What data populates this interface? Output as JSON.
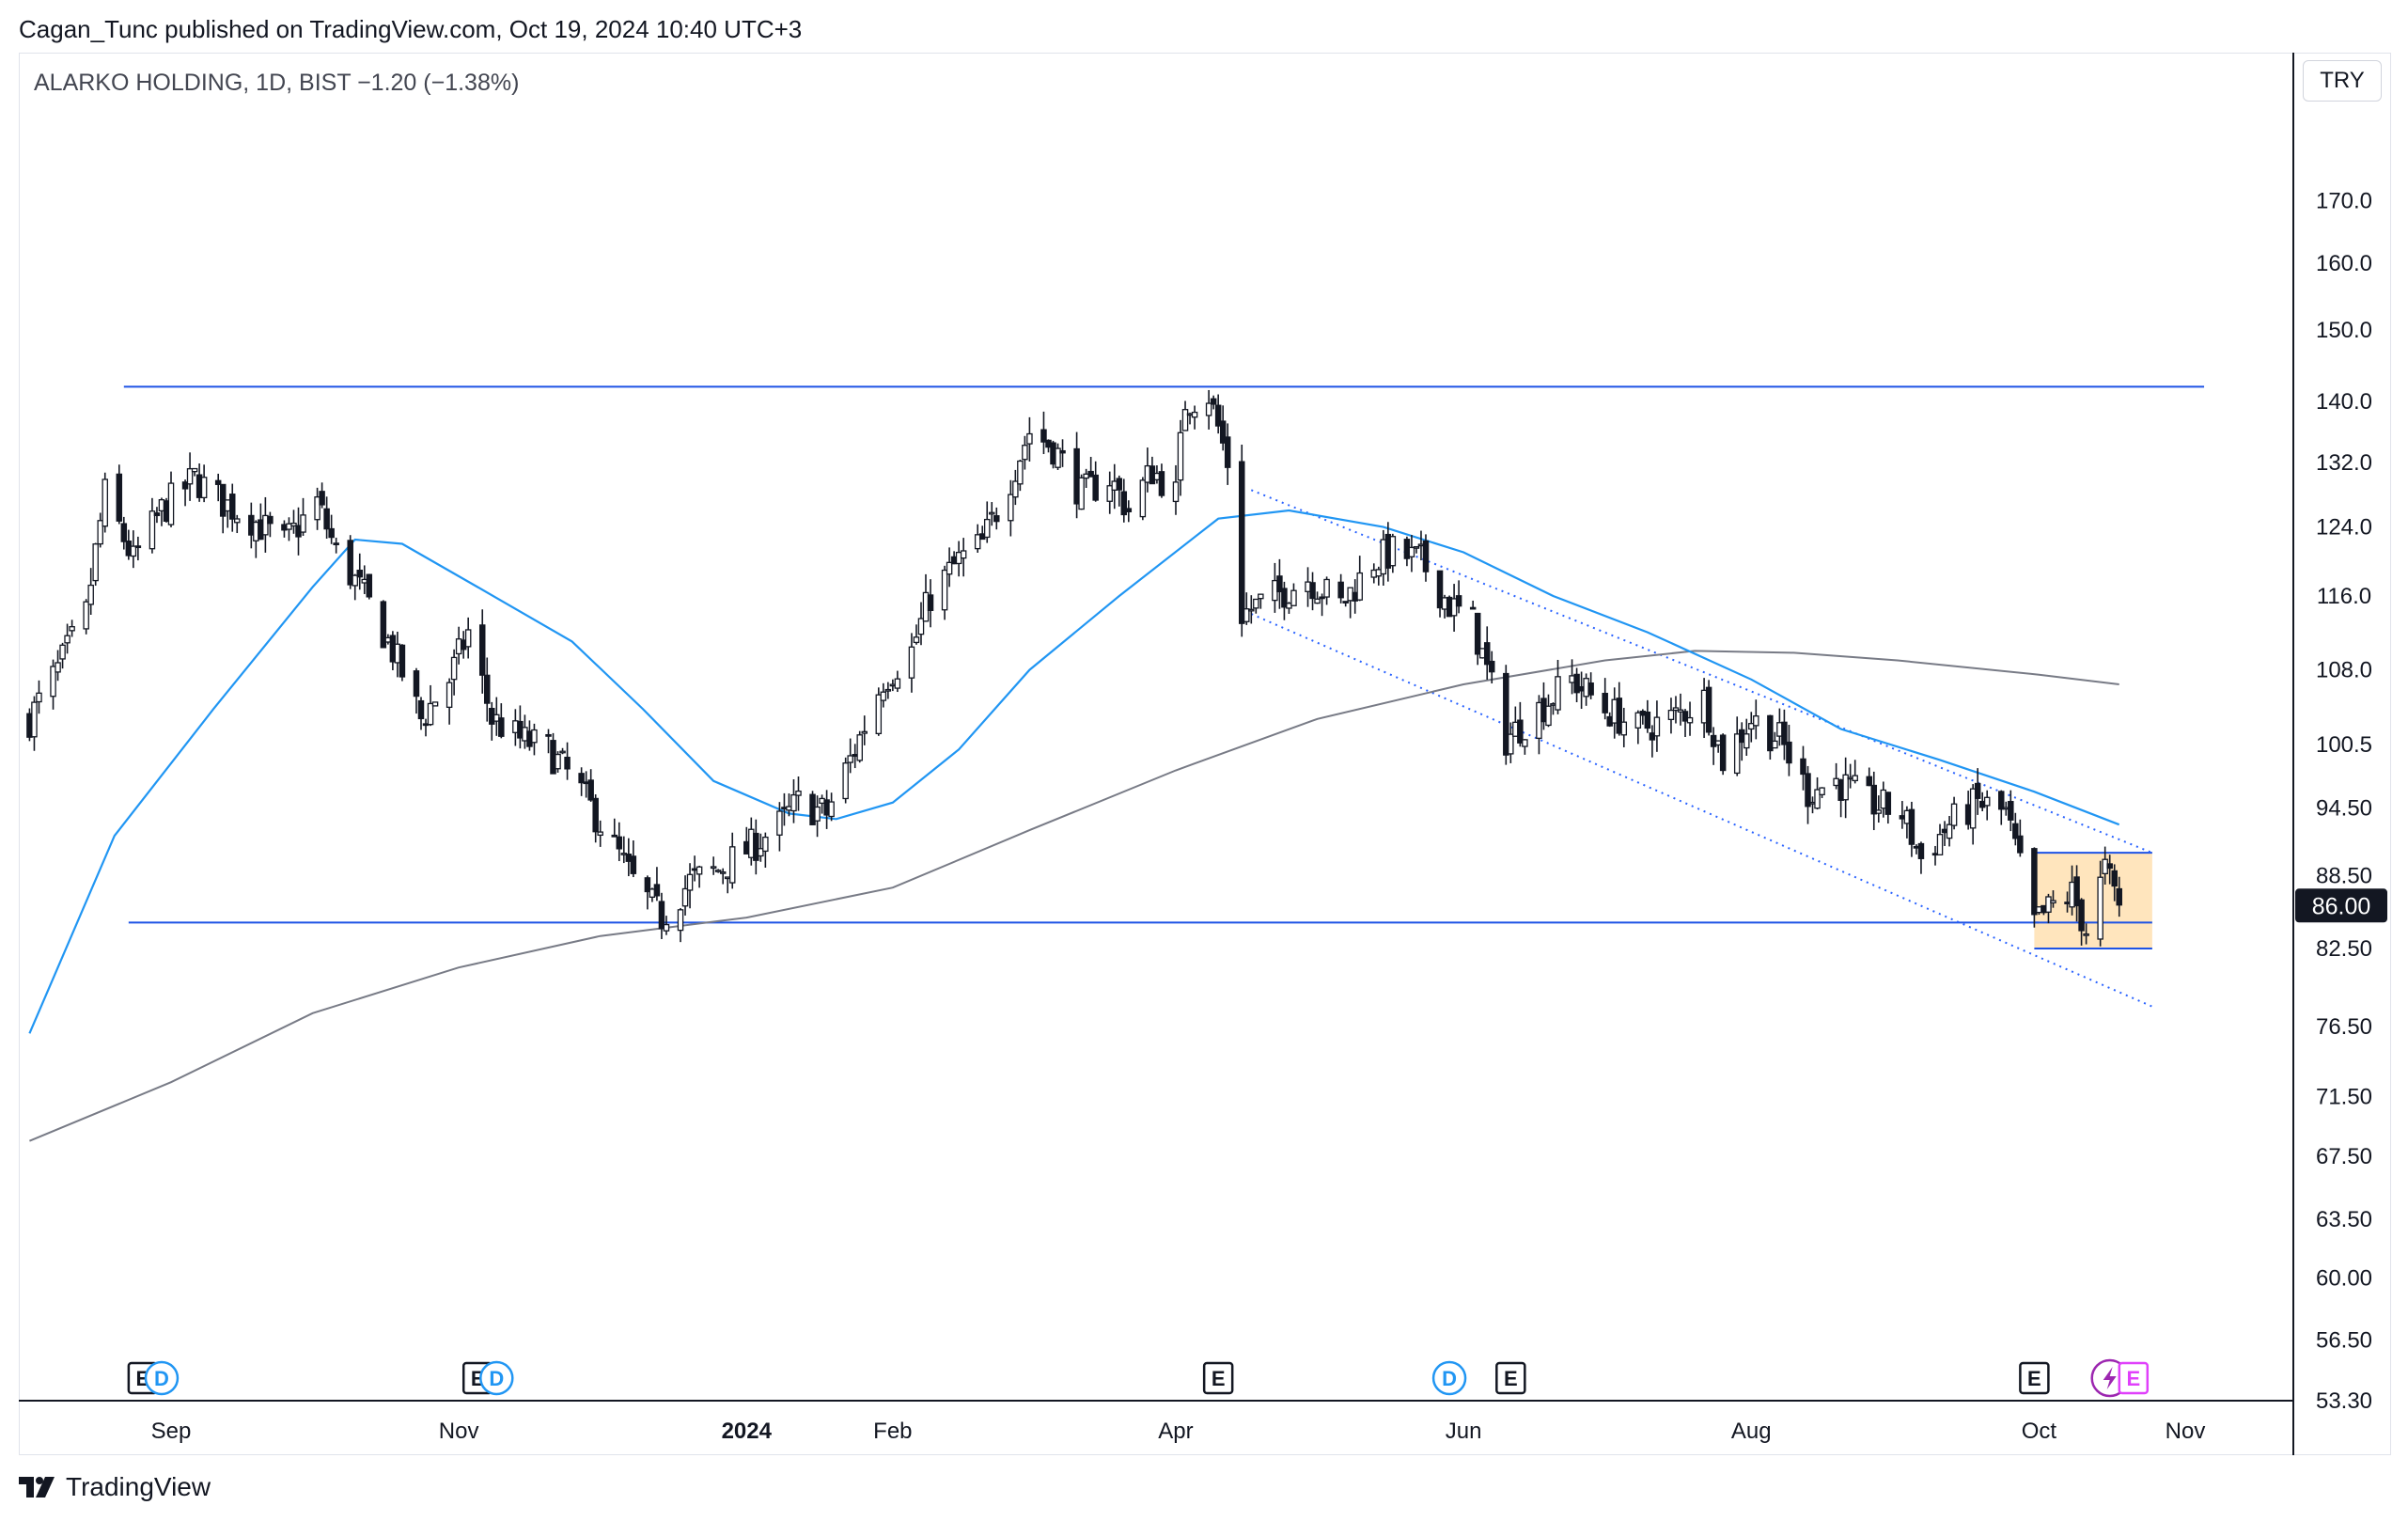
{
  "header": {
    "publisher_line": "Cagan_Tunc published on TradingView.com, Oct 19, 2024 10:40 UTC+3"
  },
  "symbol_line": "ALARKO HOLDING, 1D, BIST  −1.20 (−1.38%)",
  "currency": "TRY",
  "branding": "TradingView",
  "colors": {
    "candle": "#131722",
    "sma_fast": "#2196f3",
    "sma_slow": "#787b86",
    "level_line": "#1e53e5",
    "channel": "#2962ff",
    "range_box_fill": "#ffe0b2",
    "range_box_border": "#1e53e5",
    "price_label_bg": "#131722",
    "bolt": "#9c27b0",
    "earnings_future": "#e040fb"
  },
  "chart_data": {
    "type": "candlestick",
    "scale": "log",
    "y_ticks": [
      "170.0",
      "160.0",
      "150.0",
      "140.0",
      "132.0",
      "124.0",
      "116.0",
      "108.0",
      "100.5",
      "94.50",
      "88.50",
      "82.50",
      "76.50",
      "71.50",
      "67.50",
      "63.50",
      "60.00",
      "56.50",
      "53.30"
    ],
    "y_tick_values": [
      170,
      160,
      150,
      140,
      132,
      124,
      116,
      108,
      100.5,
      94.5,
      88.5,
      82.5,
      76.5,
      71.5,
      67.5,
      63.5,
      60,
      56.5,
      53.3
    ],
    "x_ticks": [
      {
        "label": "Sep",
        "date": "2023-09-01",
        "bold": false
      },
      {
        "label": "Nov",
        "date": "2023-11-01",
        "bold": false
      },
      {
        "label": "2024",
        "date": "2024-01-01",
        "bold": true
      },
      {
        "label": "Feb",
        "date": "2024-02-01",
        "bold": false
      },
      {
        "label": "Apr",
        "date": "2024-04-01",
        "bold": false
      },
      {
        "label": "Jun",
        "date": "2024-06-01",
        "bold": false
      },
      {
        "label": "Aug",
        "date": "2024-08-01",
        "bold": false
      },
      {
        "label": "Oct",
        "date": "2024-10-01",
        "bold": false
      },
      {
        "label": "Nov",
        "date": "2024-11-01",
        "bold": false
      }
    ],
    "last_price": "86.00",
    "price_path": [
      [
        "2023-08-02",
        103
      ],
      [
        "2023-08-08",
        108
      ],
      [
        "2023-08-14",
        114
      ],
      [
        "2023-08-18",
        128
      ],
      [
        "2023-08-24",
        120
      ],
      [
        "2023-08-30",
        126
      ],
      [
        "2023-09-06",
        130
      ],
      [
        "2023-09-12",
        127
      ],
      [
        "2023-09-18",
        125
      ],
      [
        "2023-09-25",
        122
      ],
      [
        "2023-10-02",
        127
      ],
      [
        "2023-10-06",
        121
      ],
      [
        "2023-10-12",
        116
      ],
      [
        "2023-10-18",
        110
      ],
      [
        "2023-10-24",
        103
      ],
      [
        "2023-10-30",
        107
      ],
      [
        "2023-11-03",
        112
      ],
      [
        "2023-11-08",
        103
      ],
      [
        "2023-11-14",
        101
      ],
      [
        "2023-11-20",
        100
      ],
      [
        "2023-11-27",
        96
      ],
      [
        "2023-12-04",
        91
      ],
      [
        "2023-12-08",
        88
      ],
      [
        "2023-12-14",
        85
      ],
      [
        "2023-12-20",
        88
      ],
      [
        "2023-12-26",
        89
      ],
      [
        "2024-01-02",
        91
      ],
      [
        "2024-01-08",
        93
      ],
      [
        "2024-01-12",
        95
      ],
      [
        "2024-01-18",
        94
      ],
      [
        "2024-01-24",
        100
      ],
      [
        "2024-01-30",
        107
      ],
      [
        "2024-02-05",
        110
      ],
      [
        "2024-02-09",
        116
      ],
      [
        "2024-02-15",
        120
      ],
      [
        "2024-02-20",
        122
      ],
      [
        "2024-02-26",
        130
      ],
      [
        "2024-03-01",
        136
      ],
      [
        "2024-03-06",
        134
      ],
      [
        "2024-03-12",
        128
      ],
      [
        "2024-03-18",
        130
      ],
      [
        "2024-03-22",
        126
      ],
      [
        "2024-03-27",
        131
      ],
      [
        "2024-04-01",
        128
      ],
      [
        "2024-04-03",
        140
      ],
      [
        "2024-04-08",
        141
      ],
      [
        "2024-04-12",
        132
      ],
      [
        "2024-04-15",
        114
      ],
      [
        "2024-04-22",
        116
      ],
      [
        "2024-04-29",
        118
      ],
      [
        "2024-05-06",
        115
      ],
      [
        "2024-05-13",
        120
      ],
      [
        "2024-05-17",
        121
      ],
      [
        "2024-05-23",
        120
      ],
      [
        "2024-05-29",
        115
      ],
      [
        "2024-06-03",
        113
      ],
      [
        "2024-06-10",
        101
      ],
      [
        "2024-06-17",
        104
      ],
      [
        "2024-06-24",
        107
      ],
      [
        "2024-07-01",
        104
      ],
      [
        "2024-07-08",
        102
      ],
      [
        "2024-07-15",
        103
      ],
      [
        "2024-07-22",
        105
      ],
      [
        "2024-07-26",
        99
      ],
      [
        "2024-08-01",
        103
      ],
      [
        "2024-08-07",
        101
      ],
      [
        "2024-08-13",
        96
      ],
      [
        "2024-08-19",
        97
      ],
      [
        "2024-08-26",
        95
      ],
      [
        "2024-09-02",
        94
      ],
      [
        "2024-09-06",
        90
      ],
      [
        "2024-09-12",
        93
      ],
      [
        "2024-09-18",
        95
      ],
      [
        "2024-09-24",
        94
      ],
      [
        "2024-09-30",
        84.5
      ],
      [
        "2024-10-04",
        86
      ],
      [
        "2024-10-08",
        87
      ],
      [
        "2024-10-11",
        84
      ],
      [
        "2024-10-15",
        89
      ],
      [
        "2024-10-18",
        86
      ]
    ],
    "sma_fast": [
      [
        "2023-08-02",
        76
      ],
      [
        "2023-08-20",
        92
      ],
      [
        "2023-09-10",
        104
      ],
      [
        "2023-10-01",
        117
      ],
      [
        "2023-10-10",
        122.5
      ],
      [
        "2023-10-20",
        122
      ],
      [
        "2023-11-05",
        117
      ],
      [
        "2023-11-25",
        111
      ],
      [
        "2023-12-10",
        104
      ],
      [
        "2023-12-25",
        97
      ],
      [
        "2024-01-10",
        94
      ],
      [
        "2024-01-20",
        93.5
      ],
      [
        "2024-02-01",
        95
      ],
      [
        "2024-02-15",
        100
      ],
      [
        "2024-03-01",
        108
      ],
      [
        "2024-03-20",
        116
      ],
      [
        "2024-04-10",
        125
      ],
      [
        "2024-04-25",
        126
      ],
      [
        "2024-05-15",
        124
      ],
      [
        "2024-06-01",
        121
      ],
      [
        "2024-06-20",
        116
      ],
      [
        "2024-07-10",
        112
      ],
      [
        "2024-08-01",
        107
      ],
      [
        "2024-08-20",
        102
      ],
      [
        "2024-09-10",
        99
      ],
      [
        "2024-09-30",
        96
      ],
      [
        "2024-10-18",
        93
      ]
    ],
    "sma_slow": [
      [
        "2023-08-02",
        68.5
      ],
      [
        "2023-09-01",
        72.5
      ],
      [
        "2023-10-01",
        77.5
      ],
      [
        "2023-11-01",
        81
      ],
      [
        "2023-12-01",
        83.5
      ],
      [
        "2024-01-01",
        85
      ],
      [
        "2024-02-01",
        87.5
      ],
      [
        "2024-03-01",
        92.5
      ],
      [
        "2024-04-01",
        98
      ],
      [
        "2024-05-01",
        103
      ],
      [
        "2024-06-01",
        106.5
      ],
      [
        "2024-07-01",
        109
      ],
      [
        "2024-07-20",
        110
      ],
      [
        "2024-08-10",
        109.8
      ],
      [
        "2024-09-01",
        109
      ],
      [
        "2024-10-01",
        107.5
      ],
      [
        "2024-10-18",
        106.5
      ]
    ],
    "levels": [
      {
        "name": "resistance",
        "value": 142,
        "from": "2023-08-22",
        "to": "2024-11-05"
      },
      {
        "name": "support",
        "value": 84.6,
        "from": "2023-08-23",
        "to": "2024-10-01"
      }
    ],
    "channel": {
      "upper": [
        [
          "2024-04-17",
          128.5
        ],
        [
          "2024-10-25",
          90.5
        ]
      ],
      "lower": [
        [
          "2024-04-17",
          114
        ],
        [
          "2024-10-25",
          78
        ]
      ]
    },
    "range_box": {
      "top": 90.5,
      "mid": 84.6,
      "bottom": 82.5,
      "from": "2024-09-30",
      "to": "2024-10-25"
    },
    "events": [
      {
        "type": "E",
        "date": "2023-08-26"
      },
      {
        "type": "D",
        "date": "2023-08-30"
      },
      {
        "type": "E",
        "date": "2023-11-05"
      },
      {
        "type": "D",
        "date": "2023-11-09"
      },
      {
        "type": "E",
        "date": "2024-04-10"
      },
      {
        "type": "D",
        "date": "2024-05-29"
      },
      {
        "type": "E",
        "date": "2024-06-11"
      },
      {
        "type": "E",
        "date": "2024-09-30"
      },
      {
        "type": "bolt",
        "date": "2024-10-16"
      },
      {
        "type": "E",
        "date": "2024-10-21",
        "future": true
      }
    ]
  }
}
